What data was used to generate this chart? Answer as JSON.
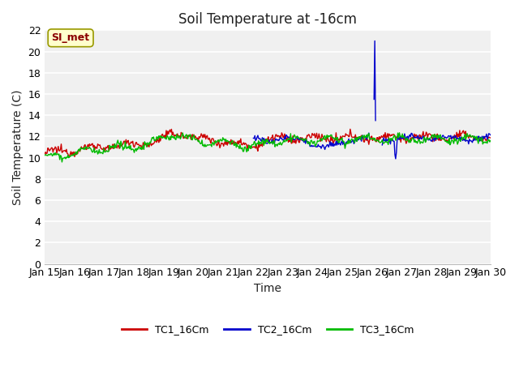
{
  "title": "Soil Temperature at -16cm",
  "xlabel": "Time",
  "ylabel": "Soil Temperature (C)",
  "ylim": [
    0,
    22
  ],
  "yticks": [
    0,
    2,
    4,
    6,
    8,
    10,
    12,
    14,
    16,
    18,
    20,
    22
  ],
  "x_labels": [
    "Jan 15",
    "Jan 16",
    "Jan 17",
    "Jan 18",
    "Jan 19",
    "Jan 20",
    "Jan 21",
    "Jan 22",
    "Jan 23",
    "Jan 24",
    "Jan 25",
    "Jan 26",
    "Jan 27",
    "Jan 28",
    "Jan 29",
    "Jan 30"
  ],
  "annotation_text": "SI_met",
  "fig_bg": "#ffffff",
  "plot_bg": "#f0f0f0",
  "grid_color": "#ffffff",
  "legend_labels": [
    "TC1_16Cm",
    "TC2_16Cm",
    "TC3_16Cm"
  ],
  "line_colors": [
    "#cc0000",
    "#0000cc",
    "#00bb00"
  ],
  "title_fontsize": 12,
  "axis_label_fontsize": 10,
  "tick_fontsize": 9
}
